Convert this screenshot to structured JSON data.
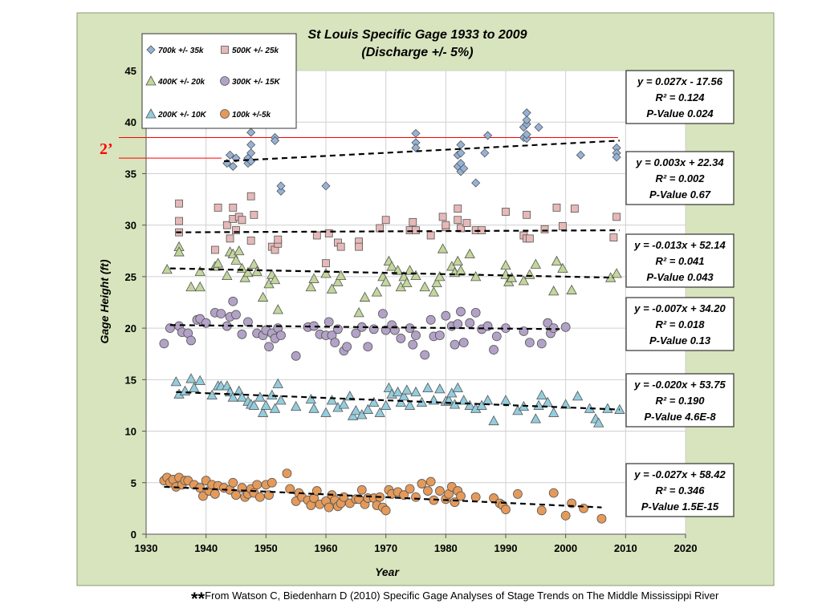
{
  "footnote": {
    "stars": "**",
    "text": "From Watson C, Biedenharn D (2010) Specific Gage Analyses of Stage Trends on The Middle Mississippi River"
  },
  "chart_data": {
    "type": "scatter",
    "title": "St Louis Specific Gage 1933 to 2009",
    "subtitle": "(Discharge +/- 5%)",
    "xlabel": "Year",
    "ylabel": "Gage Height (ft)",
    "xlim": [
      1930,
      2020
    ],
    "ylim": [
      0,
      45
    ],
    "xticks": [
      1930,
      1940,
      1950,
      1960,
      1970,
      1980,
      1990,
      2000,
      2010,
      2020
    ],
    "yticks": [
      0,
      5,
      10,
      15,
      20,
      25,
      30,
      35,
      40,
      45
    ],
    "grid": true,
    "legend_position": "top-left",
    "colors": {
      "plot_background": "#ffffff",
      "outer_background": "#d7e4bd",
      "reference_lines": "#ff0000",
      "trend_lines": "#000000"
    },
    "annotation": {
      "text": "2’",
      "color": "#ff0000",
      "lines_y": [
        38.5,
        36.5
      ]
    },
    "series": [
      {
        "name": "700k +/- 35k",
        "marker": "diamond",
        "color": "#95b3d7",
        "x": [
          1943.5,
          1944,
          1944.5,
          1945,
          1947,
          1947,
          1947.5,
          1947.5,
          1947.5,
          1947.5,
          1951.5,
          1951.5,
          1952.5,
          1952.5,
          1960,
          1975,
          1975,
          1975,
          1982,
          1982,
          1982.5,
          1982.5,
          1982.5,
          1982.5,
          1983,
          1985,
          1986.5,
          1987,
          1993,
          1993,
          1993.5,
          1993.5,
          1993.5,
          1993.5,
          1993.5,
          1995.5,
          2002.5,
          2008.5,
          2008.5,
          2008.5
        ],
        "y": [
          36.0,
          36.8,
          35.7,
          36.5,
          36.0,
          36.5,
          37.0,
          37.8,
          39.0,
          36.2,
          38.5,
          38.2,
          33.3,
          33.8,
          33.8,
          38.9,
          38.0,
          37.5,
          35.7,
          36.8,
          35.2,
          37.8,
          37.0,
          36.0,
          35.5,
          34.1,
          37.0,
          38.7,
          39.5,
          38.5,
          39.8,
          40.2,
          40.9,
          38.4,
          38.8,
          39.5,
          36.8,
          37.5,
          37.0,
          36.6
        ],
        "trend": {
          "x": [
            1943,
            2009
          ],
          "y": [
            36.2,
            38.2
          ]
        },
        "equation": "y = 0.027x - 17.56",
        "r_squared": "R² = 0.124",
        "p_value": "P-Value  0.024"
      },
      {
        "name": "500K +/- 25k",
        "marker": "square",
        "color": "#e6b9b8",
        "x": [
          1935.5,
          1935.5,
          1935.5,
          1941.5,
          1942,
          1943.5,
          1944,
          1944.5,
          1944.5,
          1945,
          1945.5,
          1946,
          1947.5,
          1947.5,
          1948,
          1951,
          1951.5,
          1952,
          1952,
          1958.5,
          1960,
          1960.5,
          1962,
          1962.5,
          1965.5,
          1965.5,
          1969,
          1970,
          1974,
          1974.5,
          1975,
          1977.5,
          1979.5,
          1980,
          1980,
          1982,
          1982,
          1982.5,
          1983.5,
          1985,
          1986,
          1990,
          1993,
          1993.5,
          1993.5,
          1994,
          1996.5,
          1998.5,
          1999.5,
          2001.5,
          2008,
          2008.5
        ],
        "y": [
          32.1,
          30.4,
          29.3,
          27.6,
          31.7,
          30.0,
          28.7,
          31.7,
          30.6,
          29.5,
          30.8,
          30.5,
          28.5,
          32.8,
          31.0,
          27.9,
          27.6,
          28.2,
          28.6,
          29.0,
          26.3,
          29.2,
          28.3,
          27.9,
          28.4,
          27.9,
          29.7,
          30.5,
          29.5,
          30.3,
          29.5,
          29.0,
          30.8,
          29.8,
          30.0,
          30.5,
          31.6,
          29.7,
          30.2,
          29.5,
          29.5,
          31.3,
          29.0,
          28.7,
          31.0,
          28.7,
          29.6,
          31.7,
          29.9,
          31.6,
          28.8,
          30.8
        ],
        "trend": {
          "x": [
            1935,
            2009
          ],
          "y": [
            29.3,
            29.5
          ]
        },
        "equation": "y = 0.003x + 22.34",
        "r_squared": "R² = 0.002",
        "p_value": "P-Value 0.67"
      },
      {
        "name": "400K +/- 20k",
        "marker": "triangle",
        "color": "#c3d69b",
        "x": [
          1933.5,
          1935.5,
          1935.5,
          1937.5,
          1939,
          1939,
          1941.5,
          1942,
          1943.5,
          1944,
          1944.5,
          1945,
          1945.5,
          1946,
          1946.5,
          1947,
          1948,
          1948.5,
          1949.5,
          1950.5,
          1951,
          1951.5,
          1952,
          1957.5,
          1958,
          1960,
          1961,
          1962,
          1962.5,
          1965.5,
          1966.5,
          1968.5,
          1969.5,
          1970,
          1970.5,
          1971,
          1972,
          1972.5,
          1973,
          1973.5,
          1974,
          1975,
          1976.5,
          1978,
          1978.5,
          1979,
          1979.5,
          1981,
          1981.5,
          1982,
          1982.5,
          1984,
          1985,
          1990,
          1990,
          1990.5,
          1991,
          1993,
          1994,
          1995,
          1998,
          1998.5,
          1999.5,
          2001,
          2007.5,
          2008.5
        ],
        "y": [
          25.7,
          27.9,
          27.4,
          24.0,
          25.5,
          24.0,
          26.0,
          26.3,
          25.1,
          27.4,
          27.2,
          26.6,
          27.5,
          25.8,
          24.9,
          25.4,
          26.2,
          25.5,
          23.0,
          24.3,
          25.2,
          24.7,
          21.8,
          24.0,
          24.8,
          25.3,
          23.8,
          24.5,
          25.1,
          21.5,
          23.0,
          23.5,
          25.0,
          24.5,
          26.5,
          26.0,
          25.6,
          24.0,
          25.0,
          24.4,
          25.6,
          25.1,
          24.0,
          23.5,
          24.4,
          25.0,
          27.7,
          26.0,
          25.4,
          26.5,
          25.6,
          27.2,
          25.0,
          26.1,
          25.2,
          24.5,
          24.9,
          24.6,
          25.2,
          26.2,
          23.6,
          26.5,
          25.8,
          23.7,
          24.9,
          25.3
        ],
        "trend": {
          "x": [
            1934,
            2008
          ],
          "y": [
            25.8,
            24.9
          ]
        },
        "equation": "y = -0.013x + 52.14",
        "r_squared": "R² = 0.041",
        "p_value": "P-Value 0.043"
      },
      {
        "name": "300K +/- 15K",
        "marker": "circle",
        "color": "#b3a2c7",
        "x": [
          1933,
          1934,
          1935.5,
          1936,
          1937,
          1937.5,
          1938.5,
          1939,
          1940,
          1941.5,
          1942.5,
          1943.5,
          1944,
          1944.5,
          1945,
          1946,
          1947,
          1948.5,
          1949.5,
          1950,
          1950.5,
          1951,
          1951.5,
          1952,
          1952.5,
          1955,
          1957,
          1958,
          1959,
          1960,
          1960.5,
          1961,
          1961.5,
          1962,
          1963,
          1963.5,
          1965,
          1966,
          1967,
          1968,
          1969.5,
          1970,
          1971,
          1971.5,
          1972.5,
          1974,
          1974.5,
          1975,
          1976.5,
          1977.5,
          1978,
          1979,
          1980,
          1981,
          1981.5,
          1982,
          1982.5,
          1983,
          1984,
          1985,
          1986,
          1987,
          1988,
          1988.5,
          1990,
          1993,
          1994,
          1996,
          1997,
          1997.5,
          1998,
          2000
        ],
        "y": [
          18.5,
          20.0,
          20.2,
          19.6,
          19.5,
          18.8,
          20.8,
          20.9,
          20.5,
          21.5,
          21.4,
          20.2,
          21.1,
          22.6,
          21.3,
          19.4,
          20.6,
          19.5,
          19.3,
          19.8,
          18.2,
          19.5,
          19.0,
          20.0,
          19.3,
          17.3,
          20.1,
          20.2,
          19.4,
          19.3,
          20.6,
          19.3,
          18.6,
          19.9,
          17.8,
          18.2,
          19.5,
          20.1,
          18.2,
          19.9,
          21.4,
          19.8,
          20.3,
          19.8,
          19.0,
          20.0,
          18.4,
          19.3,
          17.4,
          20.8,
          19.2,
          19.3,
          21.2,
          20.2,
          18.4,
          20.4,
          21.6,
          18.6,
          20.5,
          21.5,
          19.9,
          20.2,
          17.9,
          19.2,
          20.0,
          19.7,
          18.6,
          18.5,
          20.5,
          19.5,
          20.0,
          20.1
        ],
        "trend": {
          "x": [
            1934,
            1999
          ],
          "y": [
            20.3,
            19.9
          ]
        },
        "equation": "y = -0.007x + 34.20",
        "r_squared": "R² = 0.018",
        "p_value": "P-Value 0.13"
      },
      {
        "name": "200K +/- 10K",
        "marker": "triangle",
        "color": "#93cddd",
        "x": [
          1935,
          1935.5,
          1936.5,
          1937.5,
          1938,
          1939,
          1941,
          1942,
          1942.5,
          1943.5,
          1944,
          1944.5,
          1945.5,
          1946,
          1947,
          1947.5,
          1948,
          1949,
          1949.5,
          1950,
          1951,
          1951.5,
          1952,
          1952.5,
          1955,
          1957.5,
          1958,
          1960,
          1961,
          1962,
          1963,
          1964,
          1964.5,
          1965,
          1966,
          1967,
          1968,
          1969,
          1970,
          1970.5,
          1971,
          1972,
          1972.5,
          1973,
          1973.5,
          1974,
          1975,
          1976,
          1977,
          1978,
          1979,
          1980,
          1980.5,
          1981,
          1981.5,
          1982,
          1983,
          1984,
          1985,
          1986,
          1987,
          1988,
          1990,
          1992,
          1993,
          1995,
          1995.5,
          1996,
          1997,
          1998,
          2000,
          2002,
          2004,
          2005,
          2005.5,
          2007,
          2009
        ],
        "y": [
          14.8,
          13.6,
          13.9,
          15.1,
          14.2,
          14.9,
          13.5,
          14.4,
          14.4,
          14.4,
          13.8,
          13.3,
          13.9,
          13.3,
          12.9,
          12.6,
          12.5,
          13.3,
          11.8,
          12.5,
          13.5,
          12.2,
          14.6,
          13.0,
          12.4,
          13.1,
          12.2,
          11.8,
          13.0,
          12.3,
          12.6,
          13.4,
          11.5,
          12.0,
          11.6,
          12.1,
          12.8,
          11.8,
          12.5,
          14.2,
          13.6,
          13.8,
          12.8,
          13.4,
          14.0,
          12.5,
          13.8,
          12.8,
          14.2,
          13.0,
          14.1,
          12.9,
          13.0,
          13.7,
          12.6,
          14.2,
          13.0,
          12.5,
          12.2,
          12.5,
          13.0,
          11.0,
          13.0,
          12.0,
          12.4,
          11.2,
          12.5,
          13.5,
          12.8,
          11.8,
          12.6,
          13.4,
          12.2,
          11.2,
          10.8,
          12.2,
          12.1
        ],
        "trend": {
          "x": [
            1935,
            2009
          ],
          "y": [
            13.8,
            12.1
          ]
        },
        "equation": "y = -0.020x + 53.75",
        "r_squared": "R² = 0.190",
        "p_value": "P-Value 4.6E-8"
      },
      {
        "name": "100k +/-5k",
        "marker": "circle",
        "color": "#e59a5a",
        "x": [
          1933,
          1933.5,
          1934,
          1934.5,
          1935,
          1935.5,
          1936,
          1936.5,
          1937,
          1938,
          1939,
          1939.5,
          1940,
          1940.5,
          1941,
          1941.5,
          1942,
          1943,
          1944,
          1944.5,
          1945,
          1946,
          1946.5,
          1947,
          1947.5,
          1948,
          1948.5,
          1949,
          1950,
          1950.5,
          1951,
          1953.5,
          1954,
          1955,
          1955.5,
          1956,
          1957,
          1957.5,
          1958,
          1958.5,
          1959,
          1960,
          1960.5,
          1961,
          1961.5,
          1962,
          1962.5,
          1963,
          1964,
          1965,
          1965.5,
          1966,
          1966.5,
          1967,
          1968,
          1968.5,
          1969,
          1969.5,
          1970,
          1970.5,
          1971,
          1972,
          1973,
          1974,
          1975,
          1976,
          1977,
          1977.5,
          1978,
          1979,
          1980,
          1980.5,
          1981,
          1981.5,
          1982,
          1982.5,
          1985,
          1988,
          1989,
          1989.5,
          1990,
          1992,
          1996,
          1998,
          2000,
          2001,
          2003,
          2006
        ],
        "y": [
          5.2,
          5.5,
          5.0,
          5.3,
          4.6,
          5.5,
          4.8,
          5.2,
          5.2,
          4.8,
          4.5,
          3.7,
          5.2,
          4.2,
          4.8,
          3.9,
          4.7,
          4.5,
          4.3,
          5.0,
          3.8,
          4.5,
          3.6,
          3.9,
          4.4,
          4.0,
          4.8,
          3.6,
          4.8,
          3.8,
          5.0,
          5.9,
          4.4,
          3.2,
          4.0,
          3.6,
          3.3,
          2.8,
          3.5,
          4.2,
          2.9,
          3.2,
          2.6,
          3.8,
          3.3,
          2.7,
          3.0,
          3.6,
          3.0,
          3.4,
          3.4,
          4.3,
          2.9,
          3.5,
          3.5,
          2.8,
          3.6,
          2.6,
          2.3,
          4.3,
          3.9,
          4.1,
          3.8,
          4.4,
          3.6,
          4.9,
          4.2,
          5.1,
          3.3,
          4.2,
          3.4,
          3.9,
          4.6,
          3.1,
          4.2,
          3.7,
          3.6,
          3.5,
          3.0,
          2.8,
          2.4,
          3.9,
          2.3,
          4.0,
          1.8,
          3.0,
          2.5,
          1.5
        ],
        "trend": {
          "x": [
            1933,
            2006
          ],
          "y": [
            4.6,
            2.6
          ]
        },
        "equation": "y = -0.027x + 58.42",
        "r_squared": "R² = 0.346",
        "p_value": "P-Value 1.5E-15"
      }
    ]
  }
}
